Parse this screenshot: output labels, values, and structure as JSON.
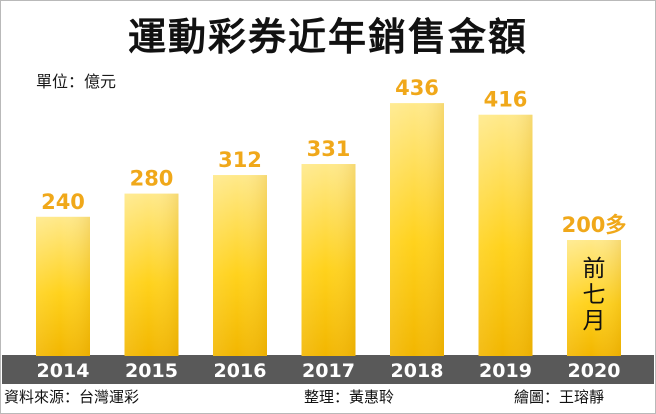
{
  "header": {
    "title": "運動彩券近年銷售金額",
    "unit": "單位：億元"
  },
  "chart_data": {
    "type": "bar",
    "title": "運動彩券近年銷售金額",
    "ylabel": "單位：億元",
    "categories": [
      "2014",
      "2015",
      "2016",
      "2017",
      "2018",
      "2019",
      "2020"
    ],
    "values": [
      240,
      280,
      312,
      331,
      436,
      416,
      200
    ],
    "data_labels": [
      "240",
      "280",
      "312",
      "331",
      "436",
      "416",
      "200多"
    ],
    "annotations": [
      {
        "category": "2020",
        "text": "前七月"
      }
    ],
    "ylim": [
      0,
      450
    ],
    "grid": false,
    "legend": "none",
    "colors": {
      "bar_top": "#ffe98a",
      "bar_mid": "#ffd21c",
      "bar_bottom": "#f2b600",
      "label": "#f0a81a",
      "axis_band": "#595959",
      "axis_text": "#ffffff",
      "background": "#ffffff"
    }
  },
  "footer": {
    "source": "資料來源：台灣運彩",
    "editor": "整理：黃惠聆",
    "artist": "繪圖：王瑢靜"
  }
}
